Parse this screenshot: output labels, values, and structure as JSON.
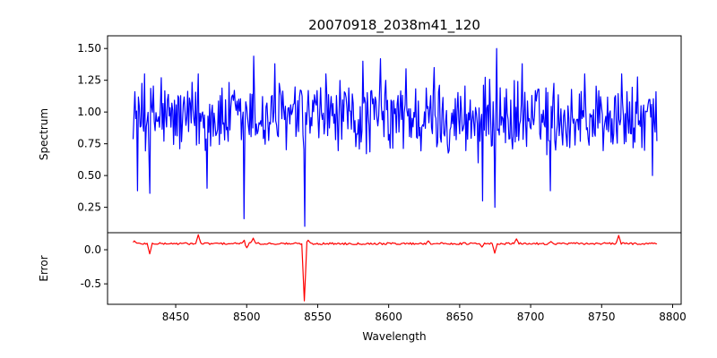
{
  "chart_data": [
    {
      "type": "line",
      "title": "20070918_2038m41_120",
      "xlabel": "",
      "ylabel": "Spectrum",
      "xlim": [
        8402,
        8806
      ],
      "ylim": [
        0.05,
        1.6
      ],
      "x_range": [
        8420,
        8789
      ],
      "yticks": [
        "0.25",
        "0.50",
        "0.75",
        "1.00",
        "1.25",
        "1.50"
      ],
      "series": [
        {
          "color": "#0000ff",
          "baseline": 0.95,
          "noise_amplitude": 0.28,
          "features": [
            {
              "x": 8421,
              "y": 1.16
            },
            {
              "x": 8423,
              "y": 0.38
            },
            {
              "x": 8428,
              "y": 1.3
            },
            {
              "x": 8432,
              "y": 0.36
            },
            {
              "x": 8440,
              "y": 1.27
            },
            {
              "x": 8466,
              "y": 1.3
            },
            {
              "x": 8472,
              "y": 0.4
            },
            {
              "x": 8498,
              "y": 0.16
            },
            {
              "x": 8505,
              "y": 1.44
            },
            {
              "x": 8520,
              "y": 1.38
            },
            {
              "x": 8541,
              "y": 0.1
            },
            {
              "x": 8556,
              "y": 1.3
            },
            {
              "x": 8582,
              "y": 1.4
            },
            {
              "x": 8594,
              "y": 1.42
            },
            {
              "x": 8612,
              "y": 1.34
            },
            {
              "x": 8632,
              "y": 1.35
            },
            {
              "x": 8663,
              "y": 0.6
            },
            {
              "x": 8666,
              "y": 0.3
            },
            {
              "x": 8675,
              "y": 0.25
            },
            {
              "x": 8676,
              "y": 1.5
            },
            {
              "x": 8694,
              "y": 1.38
            },
            {
              "x": 8714,
              "y": 0.38
            },
            {
              "x": 8738,
              "y": 1.3
            },
            {
              "x": 8764,
              "y": 1.3
            },
            {
              "x": 8786,
              "y": 0.5
            },
            {
              "x": 8788,
              "y": 1.16
            }
          ]
        }
      ]
    },
    {
      "type": "line",
      "xlabel": "Wavelength",
      "ylabel": "Error",
      "xlim": [
        8402,
        8806
      ],
      "ylim": [
        -0.8,
        0.25
      ],
      "x_range": [
        8420,
        8789
      ],
      "xticks": [
        "8450",
        "8500",
        "8550",
        "8600",
        "8650",
        "8700",
        "8750",
        "8800"
      ],
      "yticks": [
        "0.0",
        "-0.5"
      ],
      "series": [
        {
          "color": "#ff0000",
          "baseline": 0.09,
          "noise_amplitude": 0.015,
          "features": [
            {
              "x": 8421,
              "y": 0.13
            },
            {
              "x": 8432,
              "y": -0.06
            },
            {
              "x": 8466,
              "y": 0.22
            },
            {
              "x": 8498,
              "y": 0.14
            },
            {
              "x": 8500,
              "y": 0.03
            },
            {
              "x": 8505,
              "y": 0.17
            },
            {
              "x": 8541,
              "y": -0.75
            },
            {
              "x": 8543,
              "y": 0.14
            },
            {
              "x": 8628,
              "y": 0.13
            },
            {
              "x": 8666,
              "y": 0.04
            },
            {
              "x": 8675,
              "y": -0.05
            },
            {
              "x": 8690,
              "y": 0.16
            },
            {
              "x": 8714,
              "y": 0.12
            },
            {
              "x": 8762,
              "y": 0.21
            }
          ]
        }
      ]
    }
  ]
}
